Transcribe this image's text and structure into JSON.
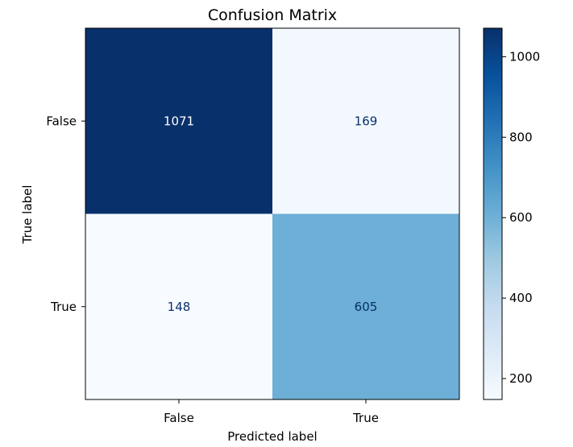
{
  "chart_data": {
    "type": "heatmap",
    "title": "Confusion Matrix",
    "xlabel": "Predicted label",
    "ylabel": "True label",
    "x_categories": [
      "False",
      "True"
    ],
    "y_categories": [
      "False",
      "True"
    ],
    "values": [
      [
        1071,
        169
      ],
      [
        148,
        605
      ]
    ],
    "colormap": "Blues",
    "colorbar": {
      "ticks": [
        200,
        400,
        600,
        800,
        1000
      ],
      "range": [
        148,
        1071
      ]
    },
    "grid": false
  }
}
